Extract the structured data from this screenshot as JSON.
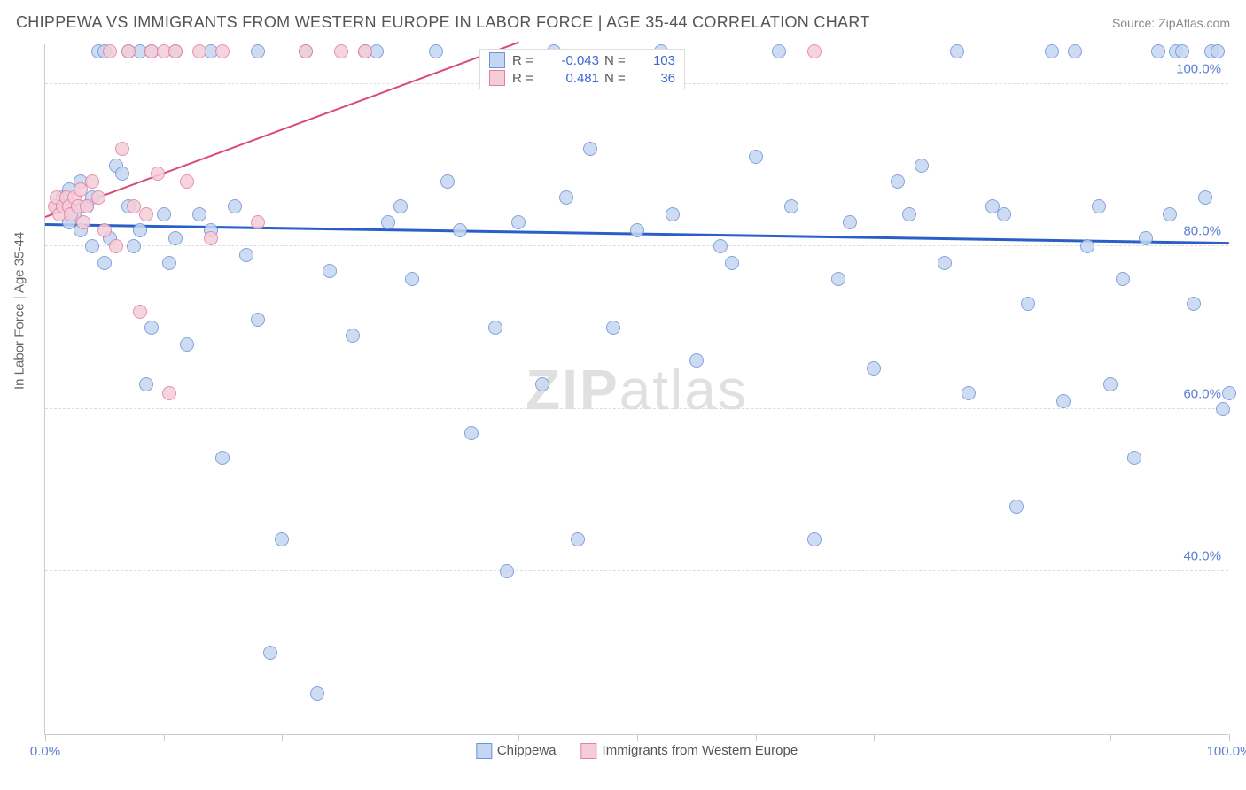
{
  "title": "CHIPPEWA VS IMMIGRANTS FROM WESTERN EUROPE IN LABOR FORCE | AGE 35-44 CORRELATION CHART",
  "source": "Source: ZipAtlas.com",
  "y_axis_title": "In Labor Force | Age 35-44",
  "watermark_bold": "ZIP",
  "watermark_rest": "atlas",
  "chart": {
    "type": "scatter",
    "xlim": [
      0,
      100
    ],
    "ylim": [
      20,
      105
    ],
    "x_ticks": [
      0,
      10,
      20,
      30,
      40,
      50,
      60,
      70,
      80,
      90,
      100
    ],
    "x_tick_labels": {
      "0": "0.0%",
      "100": "100.0%"
    },
    "y_gridlines": [
      40,
      60,
      80,
      100
    ],
    "y_tick_labels": {
      "40": "40.0%",
      "60": "60.0%",
      "80": "80.0%",
      "100": "100.0%"
    },
    "background_color": "#ffffff",
    "grid_color": "#dddddd",
    "axis_color": "#cccccc",
    "tick_label_color": "#5b7fd1",
    "marker_radius": 8,
    "marker_fill_opacity": 0.35,
    "series": [
      {
        "name": "Chippewa",
        "color": "#6e94d8",
        "fill": "#c5d6f2",
        "stroke": "#6e94d8",
        "R": "-0.043",
        "N": "103",
        "trend": {
          "x1": 0,
          "y1": 82.5,
          "x2": 100,
          "y2": 80.2,
          "color": "#2a5fc7",
          "width": 3
        },
        "points": [
          [
            1,
            85
          ],
          [
            1.5,
            86
          ],
          [
            2,
            83
          ],
          [
            2,
            87
          ],
          [
            2.5,
            84
          ],
          [
            3,
            82
          ],
          [
            3,
            88
          ],
          [
            3.5,
            85
          ],
          [
            4,
            86
          ],
          [
            4,
            80
          ],
          [
            4.5,
            104
          ],
          [
            5,
            104
          ],
          [
            5,
            78
          ],
          [
            5.5,
            81
          ],
          [
            6,
            90
          ],
          [
            6.5,
            89
          ],
          [
            7,
            104
          ],
          [
            7,
            85
          ],
          [
            7.5,
            80
          ],
          [
            8,
            82
          ],
          [
            8,
            104
          ],
          [
            8.5,
            63
          ],
          [
            9,
            70
          ],
          [
            9,
            104
          ],
          [
            10,
            84
          ],
          [
            10.5,
            78
          ],
          [
            11,
            81
          ],
          [
            11,
            104
          ],
          [
            12,
            68
          ],
          [
            13,
            84
          ],
          [
            14,
            104
          ],
          [
            14,
            82
          ],
          [
            15,
            54
          ],
          [
            16,
            85
          ],
          [
            17,
            79
          ],
          [
            18,
            104
          ],
          [
            18,
            71
          ],
          [
            19,
            30
          ],
          [
            20,
            44
          ],
          [
            22,
            104
          ],
          [
            23,
            25
          ],
          [
            24,
            77
          ],
          [
            26,
            69
          ],
          [
            27,
            104
          ],
          [
            28,
            104
          ],
          [
            29,
            83
          ],
          [
            30,
            85
          ],
          [
            31,
            76
          ],
          [
            33,
            104
          ],
          [
            34,
            88
          ],
          [
            35,
            82
          ],
          [
            36,
            57
          ],
          [
            38,
            70
          ],
          [
            39,
            40
          ],
          [
            40,
            83
          ],
          [
            42,
            63
          ],
          [
            43,
            104
          ],
          [
            44,
            86
          ],
          [
            45,
            44
          ],
          [
            46,
            92
          ],
          [
            48,
            70
          ],
          [
            50,
            82
          ],
          [
            52,
            104
          ],
          [
            53,
            84
          ],
          [
            55,
            66
          ],
          [
            57,
            80
          ],
          [
            58,
            78
          ],
          [
            60,
            91
          ],
          [
            62,
            104
          ],
          [
            63,
            85
          ],
          [
            65,
            44
          ],
          [
            67,
            76
          ],
          [
            68,
            83
          ],
          [
            70,
            65
          ],
          [
            72,
            88
          ],
          [
            73,
            84
          ],
          [
            74,
            90
          ],
          [
            76,
            78
          ],
          [
            77,
            104
          ],
          [
            78,
            62
          ],
          [
            80,
            85
          ],
          [
            81,
            84
          ],
          [
            82,
            48
          ],
          [
            83,
            73
          ],
          [
            85,
            104
          ],
          [
            86,
            61
          ],
          [
            87,
            104
          ],
          [
            88,
            80
          ],
          [
            89,
            85
          ],
          [
            90,
            63
          ],
          [
            91,
            76
          ],
          [
            92,
            54
          ],
          [
            93,
            81
          ],
          [
            94,
            104
          ],
          [
            95,
            84
          ],
          [
            95.5,
            104
          ],
          [
            96,
            104
          ],
          [
            97,
            73
          ],
          [
            98,
            86
          ],
          [
            98.5,
            104
          ],
          [
            99,
            104
          ],
          [
            99.5,
            60
          ],
          [
            100,
            62
          ]
        ]
      },
      {
        "name": "Immigrants from Western Europe",
        "color": "#e37fa0",
        "fill": "#f5cdd9",
        "stroke": "#e37fa0",
        "R": "0.481",
        "N": "36",
        "trend": {
          "x1": 0,
          "y1": 83.5,
          "x2": 40,
          "y2": 105,
          "color": "#d94a7a",
          "width": 2
        },
        "points": [
          [
            0.8,
            85
          ],
          [
            1,
            86
          ],
          [
            1.2,
            84
          ],
          [
            1.5,
            85
          ],
          [
            1.8,
            86
          ],
          [
            2,
            85
          ],
          [
            2.2,
            84
          ],
          [
            2.5,
            86
          ],
          [
            2.8,
            85
          ],
          [
            3,
            87
          ],
          [
            3.2,
            83
          ],
          [
            3.5,
            85
          ],
          [
            4,
            88
          ],
          [
            4.5,
            86
          ],
          [
            5,
            82
          ],
          [
            5.5,
            104
          ],
          [
            6,
            80
          ],
          [
            6.5,
            92
          ],
          [
            7,
            104
          ],
          [
            7.5,
            85
          ],
          [
            8,
            72
          ],
          [
            8.5,
            84
          ],
          [
            9,
            104
          ],
          [
            9.5,
            89
          ],
          [
            10,
            104
          ],
          [
            10.5,
            62
          ],
          [
            11,
            104
          ],
          [
            12,
            88
          ],
          [
            13,
            104
          ],
          [
            14,
            81
          ],
          [
            15,
            104
          ],
          [
            18,
            83
          ],
          [
            22,
            104
          ],
          [
            25,
            104
          ],
          [
            27,
            104
          ],
          [
            65,
            104
          ]
        ]
      }
    ],
    "stats_legend": {
      "labels": {
        "R": "R =",
        "N": "N ="
      }
    },
    "bottom_legend": [
      {
        "swatch_fill": "#c5d6f2",
        "swatch_stroke": "#6e94d8",
        "label": "Chippewa"
      },
      {
        "swatch_fill": "#f5cdd9",
        "swatch_stroke": "#e37fa0",
        "label": "Immigrants from Western Europe"
      }
    ]
  }
}
